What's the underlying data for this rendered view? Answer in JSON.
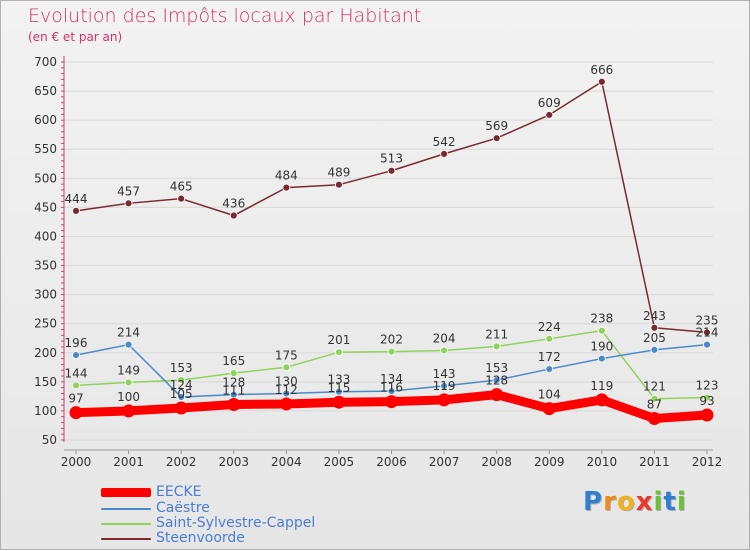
{
  "header": {
    "title": "Evolution des Impôts locaux par Habitant",
    "subtitle": "(en € et par an)"
  },
  "colors": {
    "title": "#d0336a",
    "grid": "#d9d9d9",
    "legend_text": "#4a7dd6"
  },
  "logo": {
    "text": "Proxiti",
    "letters": [
      "P",
      "r",
      "o",
      "x",
      "i",
      "t",
      "i"
    ]
  },
  "chart_data": {
    "type": "line",
    "title": "Evolution des Impôts locaux par Habitant",
    "subtitle": "(en € et par an)",
    "xlabel": "",
    "ylabel": "",
    "categories": [
      "2000",
      "2001",
      "2002",
      "2003",
      "2004",
      "2005",
      "2006",
      "2007",
      "2008",
      "2009",
      "2010",
      "2011",
      "2012"
    ],
    "ylim": [
      50,
      700
    ],
    "yticks": [
      50,
      100,
      150,
      200,
      250,
      300,
      350,
      400,
      450,
      500,
      550,
      600,
      650,
      700
    ],
    "grid": true,
    "legend_position": "bottom-left",
    "series": [
      {
        "name": "EECKE",
        "color": "#ff0000",
        "values": [
          97,
          100,
          105,
          111,
          112,
          115,
          116,
          119,
          128,
          104,
          119,
          87,
          93
        ],
        "labels": [
          "97",
          "100",
          "105",
          "111",
          "112",
          "115",
          "116",
          "119",
          "128",
          "104",
          "119",
          "87",
          "93"
        ]
      },
      {
        "name": "Caëstre",
        "color": "#4b8ac9",
        "values": [
          196,
          214,
          124,
          128,
          130,
          133,
          134,
          143,
          153,
          172,
          190,
          205,
          214
        ],
        "labels": [
          "196",
          "214",
          "124",
          "128",
          "130",
          "133",
          "134",
          "143",
          "153",
          "172",
          "190",
          "205",
          "214"
        ]
      },
      {
        "name": "Saint-Sylvestre-Cappel",
        "color": "#8fd35a",
        "values": [
          144,
          149,
          153,
          165,
          175,
          201,
          202,
          204,
          211,
          224,
          238,
          121,
          123
        ],
        "labels": [
          "144",
          "149",
          "153",
          "165",
          "175",
          "201",
          "202",
          "204",
          "211",
          "224",
          "238",
          "121",
          "123"
        ]
      },
      {
        "name": "Steenvoorde",
        "color": "#7a2a2f",
        "values": [
          444,
          457,
          465,
          436,
          484,
          489,
          513,
          542,
          569,
          609,
          666,
          243,
          235
        ],
        "labels": [
          "444",
          "457",
          "465",
          "436",
          "484",
          "489",
          "513",
          "542",
          "569",
          "609",
          "666",
          "243",
          "235"
        ]
      }
    ]
  }
}
